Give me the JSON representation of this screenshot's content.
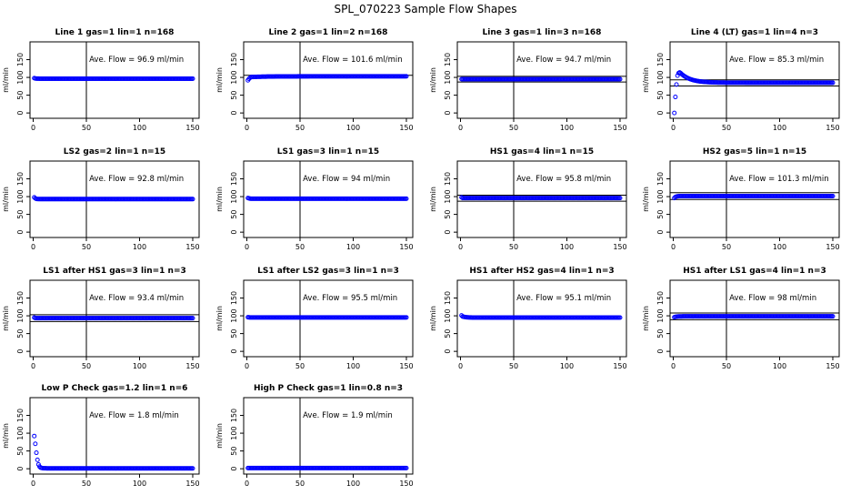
{
  "page_title": "SPL_070223  Sample Flow Shapes",
  "shared": {
    "ylabel": "ml/min",
    "x_ticks": [
      0,
      50,
      100,
      150
    ],
    "y_ticks": [
      0,
      50,
      100,
      150
    ],
    "xlim": [
      -3,
      156
    ],
    "ylim": [
      -15,
      200
    ],
    "vline_x": 50,
    "point_color": "#0000ff",
    "axis_color": "#000000",
    "ave_label_prefix": "Ave. Flow = ",
    "ave_label_suffix": "  ml/min"
  },
  "chart_data": [
    {
      "type": "scatter",
      "title": "Line 1 gas=1 lin=1 n=168",
      "ave_text": "96.9",
      "hlines": [],
      "y_start": [
        98,
        97
      ],
      "y_end": 96.5,
      "transition": 4
    },
    {
      "type": "scatter",
      "title": "Line 2 gas=1 lin=2 n=168",
      "ave_text": "101.6",
      "hlines": [
        106
      ],
      "y_start": [
        92,
        96,
        99,
        101
      ],
      "y_end": 103,
      "transition": 40
    },
    {
      "type": "scatter",
      "title": "Line 3 gas=1 lin=3 n=168",
      "ave_text": "94.7",
      "hlines": [
        87,
        103
      ],
      "y_start": [
        95
      ],
      "y_end": 95,
      "transition": 2
    },
    {
      "type": "scatter",
      "title": "Line 4 (LT) gas=1 lin=4 n=3",
      "ave_text": "85.3",
      "hlines": [
        76,
        93
      ],
      "y_start": [
        0,
        45,
        80,
        105,
        112,
        114,
        112
      ],
      "y_end": 85,
      "transition": 30
    },
    {
      "type": "scatter",
      "title": "LS2 gas=2 lin=1 n=15",
      "ave_text": "92.8",
      "hlines": [],
      "y_start": [
        98,
        95
      ],
      "y_end": 93,
      "transition": 4
    },
    {
      "type": "scatter",
      "title": "LS1 gas=3 lin=1 n=15",
      "ave_text": "94",
      "hlines": [],
      "y_start": [
        96,
        95
      ],
      "y_end": 94,
      "transition": 4
    },
    {
      "type": "scatter",
      "title": "HS1 gas=4 lin=1 n=15",
      "ave_text": "95.8",
      "hlines": [
        87,
        104
      ],
      "y_start": [
        98,
        96
      ],
      "y_end": 96,
      "transition": 4
    },
    {
      "type": "scatter",
      "title": "HS2 gas=5 lin=1 n=15",
      "ave_text": "101.3",
      "hlines": [
        92,
        111
      ],
      "y_start": [
        96,
        99
      ],
      "y_end": 101.5,
      "transition": 6
    },
    {
      "type": "scatter",
      "title": "LS1 after HS1 gas=3 lin=1 n=3",
      "ave_text": "93.4",
      "hlines": [
        84,
        103
      ],
      "y_start": [
        95
      ],
      "y_end": 93.5,
      "transition": 2
    },
    {
      "type": "scatter",
      "title": "LS1 after LS2 gas=3 lin=1 n=3",
      "ave_text": "95.5",
      "hlines": [],
      "y_start": [
        96
      ],
      "y_end": 95.5,
      "transition": 2
    },
    {
      "type": "scatter",
      "title": "HS1 after HS2 gas=4 lin=1 n=3",
      "ave_text": "95.1",
      "hlines": [],
      "y_start": [
        101,
        98
      ],
      "y_end": 95,
      "transition": 10
    },
    {
      "type": "scatter",
      "title": "HS1 after LS1 gas=4 lin=1 n=3",
      "ave_text": "98",
      "hlines": [
        89,
        108
      ],
      "y_start": [
        96
      ],
      "y_end": 98.5,
      "transition": 6
    },
    {
      "type": "scatter",
      "title": "Low P Check gas=1.2 lin=1 n=6",
      "ave_text": "1.8",
      "hlines": [],
      "y_start": [
        92,
        70,
        45,
        25,
        12,
        6,
        3
      ],
      "y_end": 1,
      "transition": 12
    },
    {
      "type": "scatter",
      "title": "High P Check gas=1 lin=0.8 n=3",
      "ave_text": "1.9",
      "hlines": [],
      "y_start": [
        2
      ],
      "y_end": 2,
      "transition": 2
    }
  ]
}
